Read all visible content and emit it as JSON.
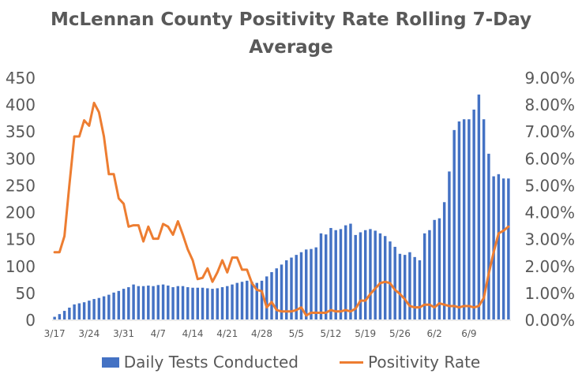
{
  "chart_data": {
    "type": "bar+line",
    "title": "McLennan County Positivity Rate Rolling 7-Day Average",
    "title_lines": [
      "McLennan County Positivity Rate Rolling 7-Day",
      "Average"
    ],
    "x_tick_labels": [
      "3/17",
      "3/24",
      "3/31",
      "4/7",
      "4/14",
      "4/21",
      "4/28",
      "5/5",
      "5/12",
      "5/19",
      "5/26",
      "6/2",
      "6/9"
    ],
    "x_tick_day_index": [
      0,
      7,
      14,
      21,
      28,
      35,
      42,
      49,
      56,
      63,
      70,
      77,
      84
    ],
    "y_left": {
      "ticks": [
        0,
        50,
        100,
        150,
        200,
        250,
        300,
        350,
        400,
        450
      ],
      "ylim": [
        0,
        450
      ]
    },
    "y_right": {
      "ticks": [
        "0.00%",
        "1.00%",
        "2.00%",
        "3.00%",
        "4.00%",
        "5.00%",
        "6.00%",
        "7.00%",
        "8.00%",
        "9.00%"
      ],
      "ylim": [
        0,
        9
      ]
    },
    "grid": "none",
    "legend_position": "bottom",
    "series": [
      {
        "name": "Daily Tests Conducted",
        "type": "bar",
        "axis": "left",
        "color": "#4472C4",
        "values": [
          5,
          10,
          16,
          22,
          28,
          30,
          32,
          35,
          38,
          40,
          43,
          46,
          50,
          53,
          57,
          60,
          65,
          62,
          62,
          63,
          62,
          64,
          65,
          63,
          60,
          62,
          62,
          60,
          59,
          59,
          59,
          58,
          57,
          58,
          60,
          62,
          65,
          68,
          70,
          72,
          70,
          68,
          72,
          80,
          88,
          95,
          102,
          110,
          115,
          120,
          125,
          130,
          131,
          134,
          160,
          158,
          170,
          166,
          168,
          175,
          178,
          157,
          162,
          166,
          168,
          165,
          160,
          155,
          145,
          135,
          122,
          120,
          125,
          116,
          110,
          160,
          166,
          185,
          188,
          218,
          275,
          352,
          368,
          372,
          372,
          390,
          418,
          372,
          308,
          266,
          270,
          262,
          262
        ]
      },
      {
        "name": "Positivity Rate",
        "type": "line",
        "axis": "right",
        "color": "#ED7D31",
        "values": [
          2.5,
          2.5,
          3.1,
          5.0,
          6.8,
          6.8,
          7.4,
          7.2,
          8.05,
          7.7,
          6.8,
          5.4,
          5.4,
          4.5,
          4.3,
          3.45,
          3.5,
          3.5,
          2.9,
          3.45,
          3.0,
          3.0,
          3.55,
          3.45,
          3.15,
          3.65,
          3.15,
          2.6,
          2.2,
          1.5,
          1.55,
          1.9,
          1.4,
          1.75,
          2.2,
          1.75,
          2.3,
          2.3,
          1.85,
          1.85,
          1.35,
          1.1,
          1.05,
          0.45,
          0.65,
          0.35,
          0.3,
          0.3,
          0.3,
          0.35,
          0.45,
          0.15,
          0.25,
          0.25,
          0.25,
          0.25,
          0.35,
          0.3,
          0.3,
          0.35,
          0.3,
          0.4,
          0.7,
          0.7,
          0.95,
          1.15,
          1.35,
          1.4,
          1.35,
          1.1,
          0.95,
          0.75,
          0.5,
          0.45,
          0.45,
          0.55,
          0.55,
          0.45,
          0.6,
          0.55,
          0.5,
          0.5,
          0.45,
          0.5,
          0.5,
          0.45,
          0.5,
          0.8,
          1.7,
          2.5,
          3.2,
          3.3,
          3.45
        ]
      }
    ]
  }
}
